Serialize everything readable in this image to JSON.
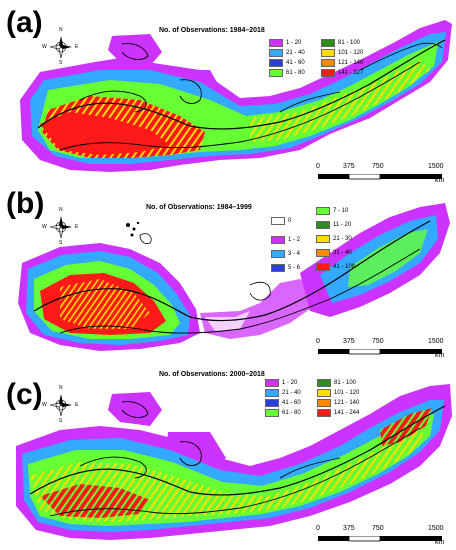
{
  "panels": [
    {
      "label": "(a)",
      "legend_title": "No. of Observations: 1984–2018",
      "legend": [
        {
          "label": "1 - 20",
          "color": "#cc33ff"
        },
        {
          "label": "21 - 40",
          "color": "#33aaff"
        },
        {
          "label": "41 - 60",
          "color": "#2a3fd8"
        },
        {
          "label": "61 - 80",
          "color": "#66ff33"
        },
        {
          "label": "81 - 100",
          "color": "#2e8b1e"
        },
        {
          "label": "101 - 120",
          "color": "#ffdd00"
        },
        {
          "label": "121 - 140",
          "color": "#ff8800"
        },
        {
          "label": "141 - 327",
          "color": "#ff1a1a"
        }
      ],
      "scale": {
        "ticks": [
          "0",
          "375",
          "750",
          "1500"
        ],
        "unit": "km"
      },
      "compass": {
        "n": "N",
        "s": "S",
        "e": "E",
        "w": "W"
      }
    },
    {
      "label": "(b)",
      "legend_title": "No. of Observations: 1984–1999",
      "legend": [
        {
          "label": "0",
          "color": "#ffffff"
        },
        {
          "label": "1 - 2",
          "color": "#cc33ff"
        },
        {
          "label": "3 - 4",
          "color": "#33aaff"
        },
        {
          "label": "5 - 6",
          "color": "#2a3fd8"
        },
        {
          "label": "7 - 10",
          "color": "#66ff33"
        },
        {
          "label": "11 - 20",
          "color": "#2e8b1e"
        },
        {
          "label": "21 - 30",
          "color": "#ffdd00"
        },
        {
          "label": "31 - 40",
          "color": "#ff8800"
        },
        {
          "label": "41 - 108",
          "color": "#ff1a1a"
        }
      ],
      "scale": {
        "ticks": [
          "0",
          "375",
          "750",
          "1500"
        ],
        "unit": "km"
      },
      "compass": {
        "n": "N",
        "s": "S",
        "e": "E",
        "w": "W"
      }
    },
    {
      "label": "(c)",
      "legend_title": "No. of Observations: 2000–2018",
      "legend": [
        {
          "label": "1 - 20",
          "color": "#cc33ff"
        },
        {
          "label": "21 - 40",
          "color": "#33aaff"
        },
        {
          "label": "41 - 60",
          "color": "#2a3fd8"
        },
        {
          "label": "61 - 80",
          "color": "#66ff33"
        },
        {
          "label": "81 - 100",
          "color": "#2e8b1e"
        },
        {
          "label": "101 - 120",
          "color": "#ffdd00"
        },
        {
          "label": "121 - 140",
          "color": "#ff8800"
        },
        {
          "label": "141 - 244",
          "color": "#ff1a1a"
        }
      ],
      "scale": {
        "ticks": [
          "0",
          "375",
          "750",
          "1500"
        ],
        "unit": "km"
      },
      "compass": {
        "n": "N",
        "s": "S",
        "e": "E",
        "w": "W"
      }
    }
  ]
}
